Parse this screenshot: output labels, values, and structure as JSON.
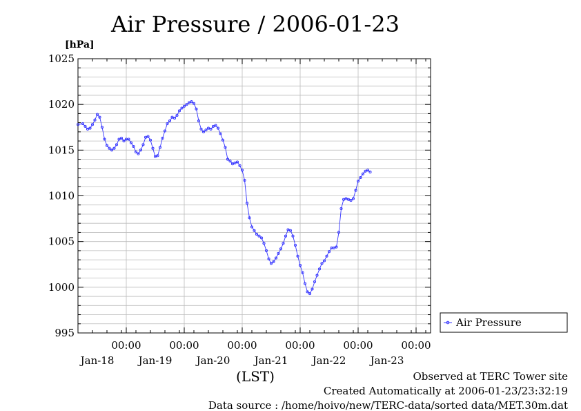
{
  "chart_data": {
    "type": "line",
    "title": "Air Pressure / 2006-01-23",
    "ylabel": "[hPa]",
    "xlabel": "(LST)",
    "ylim": [
      995,
      1025
    ],
    "yticks": [
      995,
      1000,
      1005,
      1010,
      1015,
      1020,
      1025
    ],
    "xlim_hours": [
      0,
      146
    ],
    "xticks": [
      {
        "time": "00:00",
        "date": "Jan-18"
      },
      {
        "time": "00:00",
        "date": "Jan-19"
      },
      {
        "time": "00:00",
        "date": "Jan-20"
      },
      {
        "time": "00:00",
        "date": "Jan-21"
      },
      {
        "time": "00:00",
        "date": "Jan-22"
      },
      {
        "time": "00:00",
        "date": "Jan-23"
      }
    ],
    "grid": true,
    "legend": "right",
    "series": [
      {
        "name": "Air Pressure",
        "color": "#3333ff",
        "points": [
          [
            0,
            1017.8
          ],
          [
            2,
            1017.9
          ],
          [
            3,
            1017.6
          ],
          [
            4,
            1017.3
          ],
          [
            5,
            1017.4
          ],
          [
            6,
            1017.8
          ],
          [
            7,
            1018.3
          ],
          [
            8,
            1018.9
          ],
          [
            9,
            1018.6
          ],
          [
            10,
            1017.5
          ],
          [
            11,
            1016.2
          ],
          [
            12,
            1015.5
          ],
          [
            13,
            1015.2
          ],
          [
            14,
            1015.0
          ],
          [
            15,
            1015.2
          ],
          [
            16,
            1015.6
          ],
          [
            17,
            1016.2
          ],
          [
            18,
            1016.3
          ],
          [
            19,
            1016.0
          ],
          [
            20,
            1016.2
          ],
          [
            21,
            1016.2
          ],
          [
            22,
            1015.8
          ],
          [
            23,
            1015.4
          ],
          [
            24,
            1014.8
          ],
          [
            25,
            1014.6
          ],
          [
            26,
            1015.0
          ],
          [
            27,
            1015.6
          ],
          [
            28,
            1016.4
          ],
          [
            29,
            1016.5
          ],
          [
            30,
            1016.1
          ],
          [
            31,
            1015.2
          ],
          [
            32,
            1014.3
          ],
          [
            33,
            1014.4
          ],
          [
            34,
            1015.3
          ],
          [
            35,
            1016.3
          ],
          [
            36,
            1017.1
          ],
          [
            37,
            1017.9
          ],
          [
            38,
            1018.2
          ],
          [
            39,
            1018.6
          ],
          [
            40,
            1018.5
          ],
          [
            41,
            1018.8
          ],
          [
            42,
            1019.3
          ],
          [
            43,
            1019.6
          ],
          [
            44,
            1019.8
          ],
          [
            45,
            1020.0
          ],
          [
            46,
            1020.2
          ],
          [
            47,
            1020.3
          ],
          [
            48,
            1020.1
          ],
          [
            49,
            1019.5
          ],
          [
            50,
            1018.2
          ],
          [
            51,
            1017.3
          ],
          [
            52,
            1017.0
          ],
          [
            53,
            1017.2
          ],
          [
            54,
            1017.4
          ],
          [
            55,
            1017.3
          ],
          [
            56,
            1017.6
          ],
          [
            57,
            1017.7
          ],
          [
            58,
            1017.4
          ],
          [
            59,
            1016.8
          ],
          [
            60,
            1016.1
          ],
          [
            61,
            1015.3
          ],
          [
            62,
            1014.0
          ],
          [
            63,
            1013.8
          ],
          [
            64,
            1013.5
          ],
          [
            65,
            1013.6
          ],
          [
            66,
            1013.7
          ],
          [
            67,
            1013.3
          ],
          [
            68,
            1012.8
          ],
          [
            69,
            1011.7
          ],
          [
            70,
            1009.2
          ],
          [
            71,
            1007.6
          ],
          [
            72,
            1006.6
          ],
          [
            73,
            1006.2
          ],
          [
            74,
            1005.8
          ],
          [
            75,
            1005.6
          ],
          [
            76,
            1005.4
          ],
          [
            77,
            1004.8
          ],
          [
            78,
            1004.0
          ],
          [
            79,
            1003.1
          ],
          [
            80,
            1002.6
          ],
          [
            81,
            1002.8
          ],
          [
            82,
            1003.2
          ],
          [
            83,
            1003.7
          ],
          [
            84,
            1004.2
          ],
          [
            85,
            1004.8
          ],
          [
            86,
            1005.6
          ],
          [
            87,
            1006.3
          ],
          [
            88,
            1006.2
          ],
          [
            89,
            1005.6
          ],
          [
            90,
            1004.6
          ],
          [
            91,
            1003.4
          ],
          [
            92,
            1002.4
          ],
          [
            93,
            1001.6
          ],
          [
            94,
            1000.4
          ],
          [
            95,
            999.5
          ],
          [
            96,
            999.3
          ],
          [
            97,
            999.8
          ],
          [
            98,
            1000.6
          ],
          [
            99,
            1001.3
          ],
          [
            100,
            1002.0
          ],
          [
            101,
            1002.6
          ],
          [
            102,
            1002.9
          ],
          [
            103,
            1003.4
          ],
          [
            104,
            1003.9
          ],
          [
            105,
            1004.3
          ],
          [
            106,
            1004.3
          ],
          [
            107,
            1004.4
          ],
          [
            108,
            1006.0
          ],
          [
            109,
            1008.6
          ],
          [
            110,
            1009.6
          ],
          [
            111,
            1009.7
          ],
          [
            112,
            1009.6
          ],
          [
            113,
            1009.5
          ],
          [
            114,
            1009.7
          ],
          [
            115,
            1010.6
          ],
          [
            116,
            1011.6
          ],
          [
            117,
            1012.0
          ],
          [
            118,
            1012.4
          ],
          [
            119,
            1012.7
          ],
          [
            120,
            1012.8
          ],
          [
            121,
            1012.6
          ]
        ]
      }
    ],
    "annotations": [
      "Observed at TERC Tower site",
      "Created Automatically at 2006-01-23/23:32:19",
      "Data source : /home/hoivo/new/TERC-data/sorted  data/MET.30m.dat"
    ]
  }
}
